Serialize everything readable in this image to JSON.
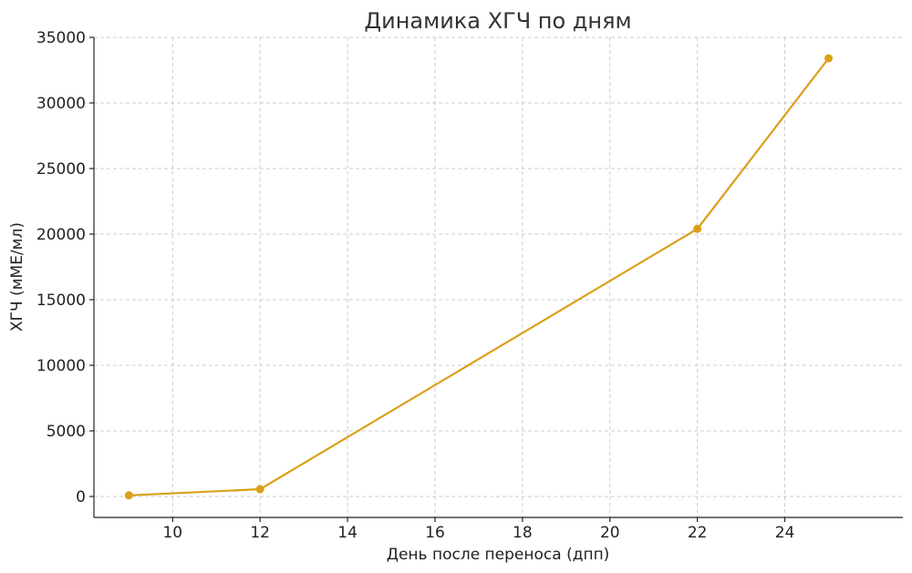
{
  "chart_data": {
    "type": "line",
    "title": "Динамика ХГЧ по дням",
    "xlabel": "День после переноса (дпп)",
    "ylabel": "ХГЧ (мМЕ/мл)",
    "xlim": [
      8.2,
      26.7
    ],
    "ylim": [
      -1600,
      35000
    ],
    "xticks": [
      10,
      12,
      14,
      16,
      18,
      20,
      22,
      24
    ],
    "yticks": [
      0,
      5000,
      10000,
      15000,
      20000,
      25000,
      30000,
      35000
    ],
    "grid": true,
    "series": [
      {
        "color": "#DAA018",
        "marker": "circle",
        "x": [
          9,
          12,
          22,
          25
        ],
        "y": [
          80,
          550,
          20400,
          33400
        ]
      }
    ]
  }
}
